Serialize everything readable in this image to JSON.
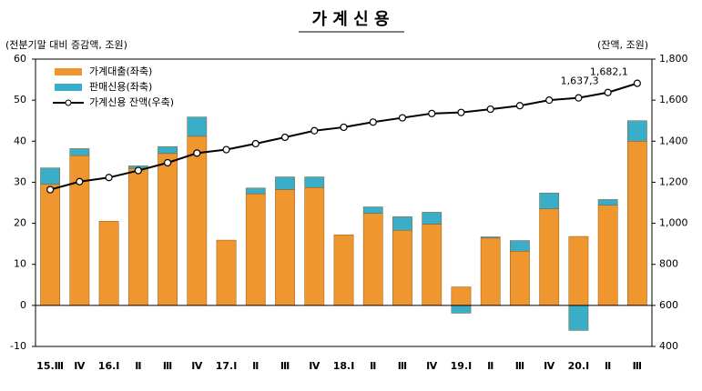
{
  "chart_data": {
    "type": "bar-line",
    "title": "가 계 신 용",
    "y_label": "(전분기말 대비 증감액, 조원)",
    "y2_label": "(잔액, 조원)",
    "categories": [
      "15.Ⅲ",
      "Ⅳ",
      "16.Ⅰ",
      "Ⅱ",
      "Ⅲ",
      "Ⅳ",
      "17.Ⅰ",
      "Ⅱ",
      "Ⅲ",
      "Ⅳ",
      "18.Ⅰ",
      "Ⅱ",
      "Ⅲ",
      "Ⅳ",
      "19.Ⅰ",
      "Ⅱ",
      "Ⅲ",
      "Ⅳ",
      "20.Ⅰ",
      "Ⅱ",
      "Ⅲ"
    ],
    "series": [
      {
        "name": "가계대출(좌축)",
        "color": "#f0962e",
        "values": [
          29.5,
          36.5,
          20.5,
          33.4,
          37,
          41.2,
          15.9,
          27.2,
          28.2,
          28.7,
          17.2,
          22.4,
          18.3,
          19.8,
          4.5,
          16.4,
          13.2,
          23.5,
          16.8,
          24.4,
          40
        ]
      },
      {
        "name": "판매신용(좌축)",
        "color": "#3aaec8",
        "values": [
          4,
          1.7,
          0,
          0.6,
          1.7,
          4.7,
          0,
          1.4,
          3.1,
          2.6,
          0,
          1.6,
          3.3,
          2.9,
          -1.9,
          0.3,
          2.6,
          3.9,
          -6.1,
          1.4,
          5
        ]
      },
      {
        "name": "가계신용 잔액(우축)",
        "color": "#000000",
        "axis": "y2",
        "values": [
          1164,
          1203,
          1223,
          1257,
          1295,
          1342,
          1359,
          1388,
          1419,
          1451,
          1468,
          1493,
          1514,
          1535,
          1540,
          1556,
          1573,
          1600,
          1611,
          1637.3,
          1682.1
        ],
        "value_labels": [
          null,
          null,
          null,
          null,
          null,
          null,
          null,
          null,
          null,
          null,
          null,
          null,
          null,
          null,
          null,
          null,
          null,
          null,
          null,
          "1,637,3",
          "1,682,1"
        ]
      }
    ],
    "ylim": [
      -10,
      60
    ],
    "yticks": [
      -10,
      0,
      10,
      20,
      30,
      40,
      50,
      60
    ],
    "y2lim": [
      400,
      1800
    ],
    "y2ticks": [
      400,
      600,
      800,
      {
        "value": 1000,
        "label": "1,000"
      },
      {
        "value": 1200,
        "label": "1,200"
      },
      {
        "value": 1400,
        "label": "1,400"
      },
      {
        "value": 1600,
        "label": "1,600"
      },
      {
        "value": 1800,
        "label": "1,800"
      }
    ],
    "grid": false
  }
}
